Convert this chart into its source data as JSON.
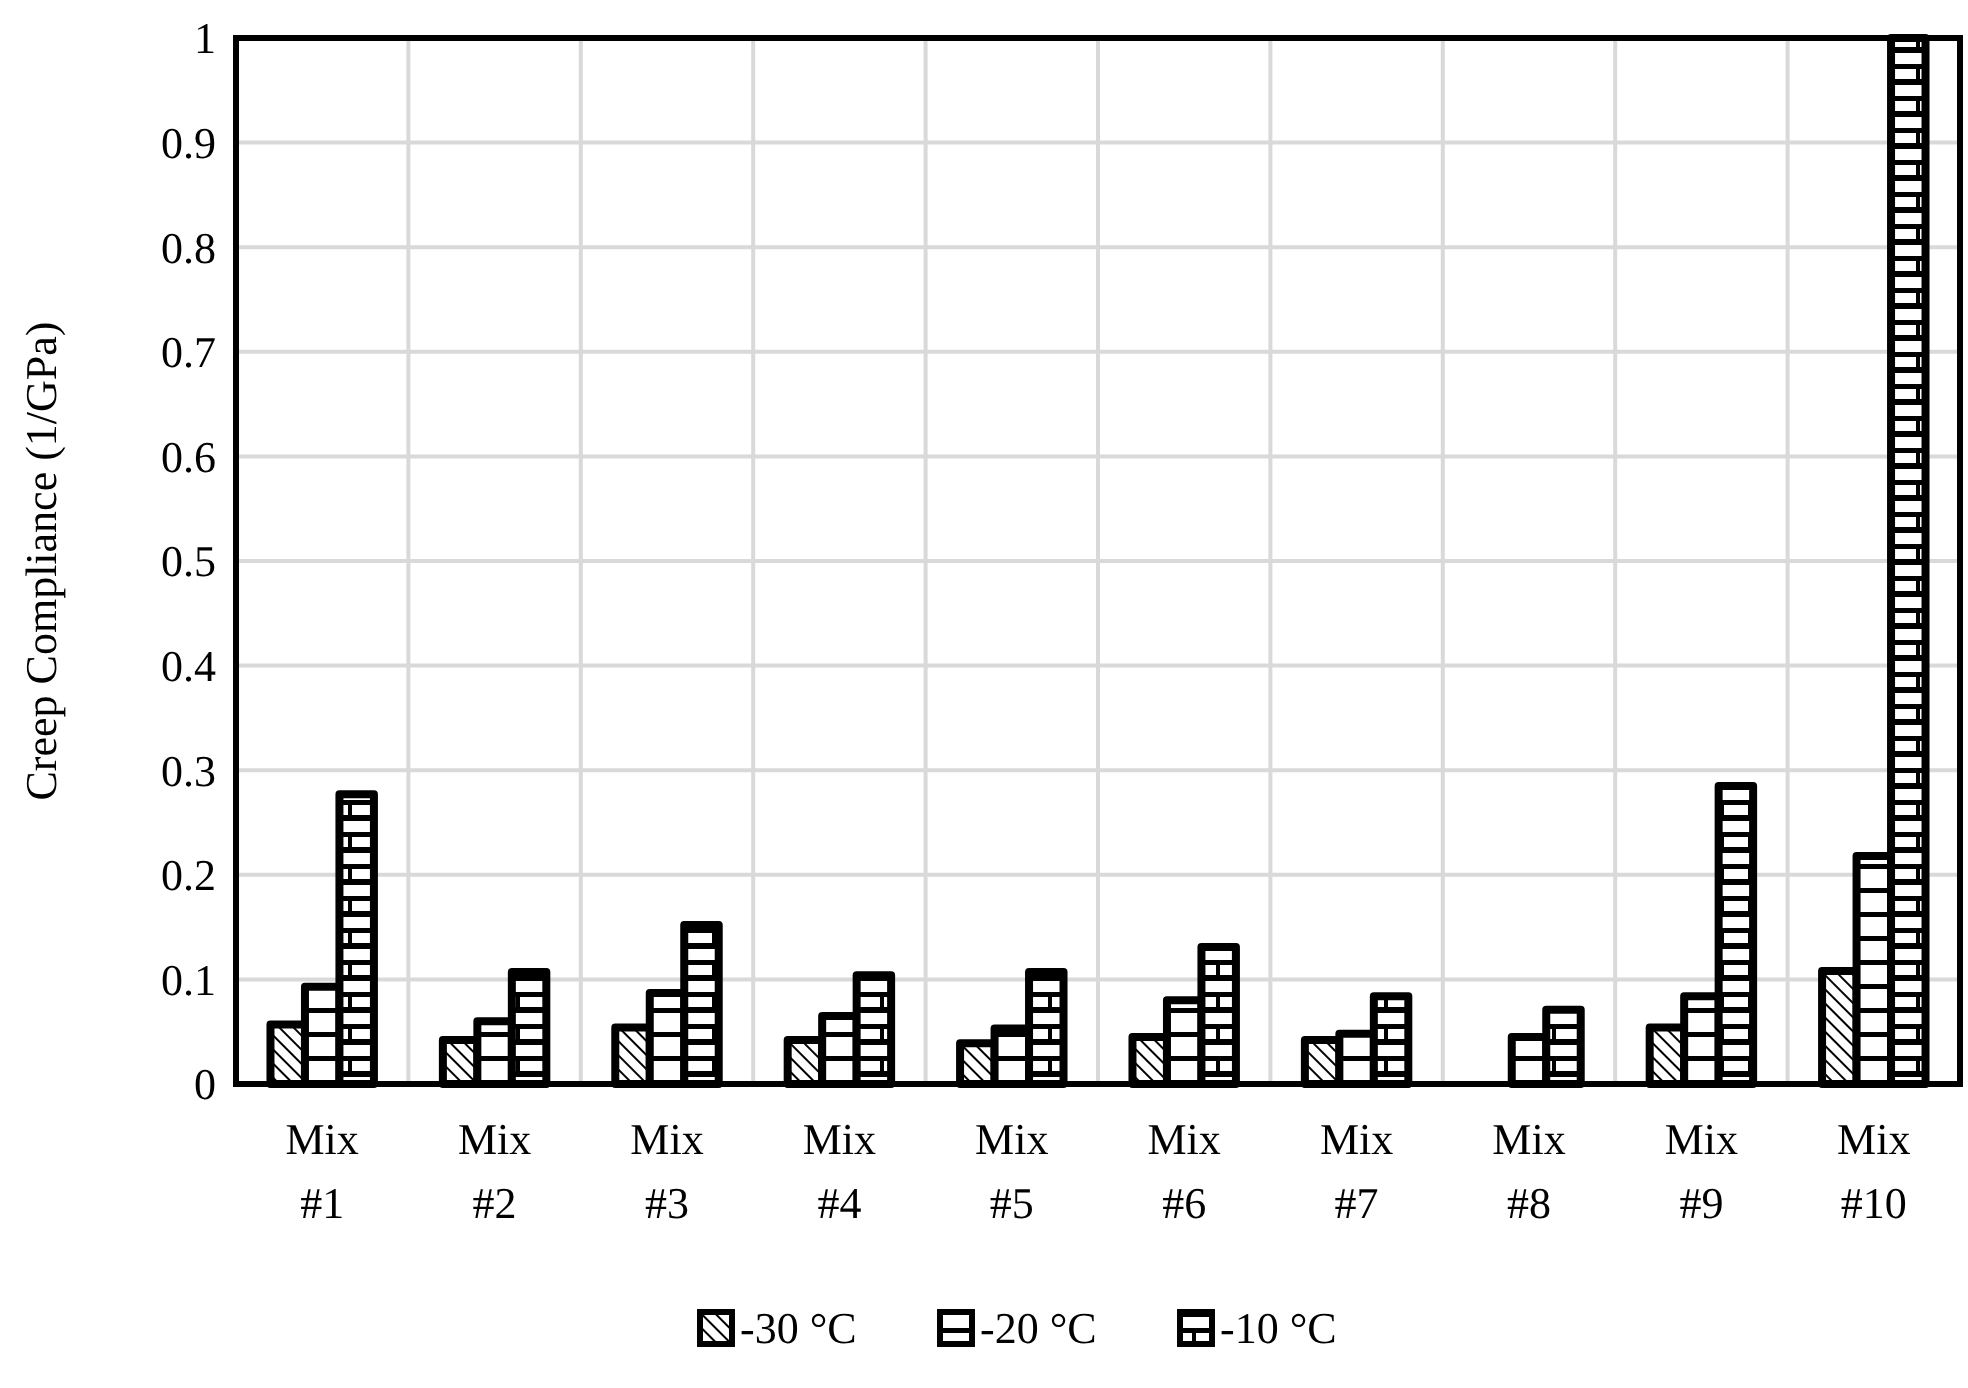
{
  "chart_data": {
    "type": "bar",
    "ylabel": "Creep Compliance (1/GPa)",
    "categories": [
      "Mix #1",
      "Mix #2",
      "Mix #3",
      "Mix #4",
      "Mix #5",
      "Mix #6",
      "Mix #7",
      "Mix #8",
      "Mix #9",
      "Mix #10"
    ],
    "series": [
      {
        "name": "-30 °C",
        "color": "#000000",
        "values": [
          0.057,
          0.042,
          0.054,
          0.042,
          0.039,
          0.045,
          0.042,
          null,
          0.054,
          0.108
        ]
      },
      {
        "name": "-20 °C",
        "color": "#000000",
        "values": [
          0.093,
          0.06,
          0.087,
          0.065,
          0.053,
          0.08,
          0.048,
          0.045,
          0.084,
          0.218
        ]
      },
      {
        "name": "-10 °C",
        "color": "#000000",
        "values": [
          0.277,
          0.107,
          0.152,
          0.104,
          0.107,
          0.131,
          0.084,
          0.071,
          0.285,
          1.0
        ]
      }
    ],
    "ylim": [
      0,
      1
    ],
    "yticks": [
      0,
      0.1,
      0.2,
      0.3,
      0.4,
      0.5,
      0.6,
      0.7,
      0.8,
      0.9,
      1
    ],
    "grid": true,
    "legend": "bottom"
  }
}
